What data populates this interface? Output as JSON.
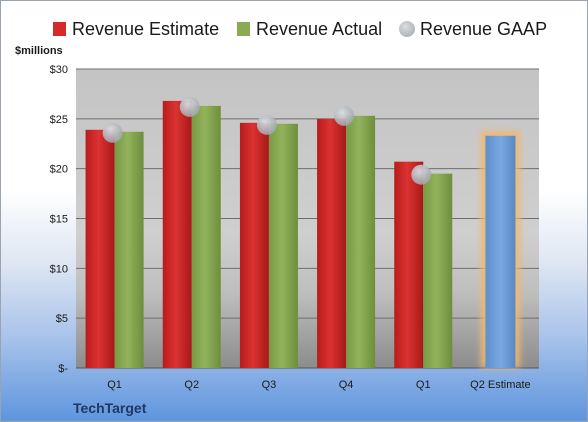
{
  "chart_data": {
    "type": "bar",
    "unit_label": "$millions",
    "brand": "TechTarget",
    "categories": [
      "Q1",
      "Q2",
      "Q3",
      "Q4",
      "Q1",
      "Q2 Estimate"
    ],
    "ylim": [
      0,
      30
    ],
    "y_ticks": [
      {
        "value": 0,
        "label": "$-"
      },
      {
        "value": 5,
        "label": "$5"
      },
      {
        "value": 10,
        "label": "$10"
      },
      {
        "value": 15,
        "label": "$15"
      },
      {
        "value": 20,
        "label": "$20"
      },
      {
        "value": 25,
        "label": "$25"
      },
      {
        "value": 30,
        "label": "$30"
      }
    ],
    "grid": true,
    "legend_position": "top",
    "series": [
      {
        "name": "Revenue Estimate",
        "kind": "bar",
        "color": "#d42a2a",
        "values": [
          23.9,
          26.8,
          24.6,
          25.0,
          20.7,
          null
        ]
      },
      {
        "name": "Revenue Actual",
        "kind": "bar",
        "color": "#8aab52",
        "values": [
          23.7,
          26.3,
          24.5,
          25.3,
          19.5,
          null
        ]
      },
      {
        "name": "Revenue GAAP",
        "kind": "marker",
        "color": "#b9bdc4",
        "values": [
          23.6,
          26.2,
          24.4,
          25.3,
          19.4,
          null
        ]
      }
    ],
    "estimate": {
      "category_index": 5,
      "value": 23.3,
      "color": "#6f9fd8",
      "glow_color": "#f0b870"
    }
  }
}
